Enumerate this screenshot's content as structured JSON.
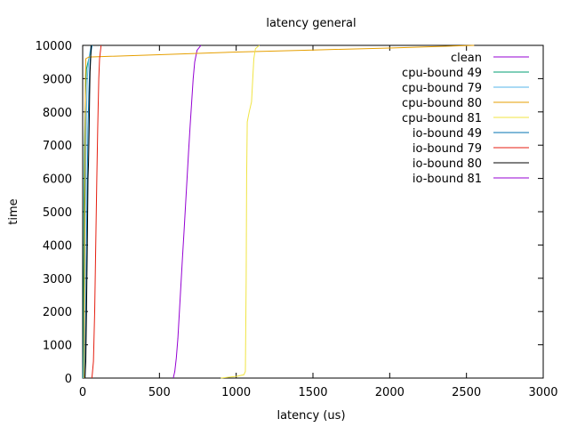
{
  "chart_data": {
    "type": "line",
    "title": "latency general",
    "xlabel": "latency (us)",
    "ylabel": "time",
    "xlim": [
      0,
      3000
    ],
    "ylim": [
      0,
      10000
    ],
    "xticks": [
      0,
      500,
      1000,
      1500,
      2000,
      2500,
      3000
    ],
    "yticks": [
      0,
      1000,
      2000,
      3000,
      4000,
      5000,
      6000,
      7000,
      8000,
      9000,
      10000
    ],
    "legend_position": "top-right",
    "grid": false,
    "series": [
      {
        "name": "clean",
        "color": "#9400d3",
        "points": [
          [
            590,
            0
          ],
          [
            600,
            200
          ],
          [
            610,
            600
          ],
          [
            620,
            1200
          ],
          [
            630,
            2000
          ],
          [
            640,
            2800
          ],
          [
            650,
            3600
          ],
          [
            660,
            4400
          ],
          [
            670,
            5200
          ],
          [
            680,
            6000
          ],
          [
            690,
            6800
          ],
          [
            700,
            7600
          ],
          [
            710,
            8300
          ],
          [
            720,
            9000
          ],
          [
            730,
            9500
          ],
          [
            745,
            9850
          ],
          [
            770,
            10000
          ]
        ]
      },
      {
        "name": "cpu-bound 49",
        "color": "#009e73",
        "points": [
          [
            2,
            0
          ],
          [
            4,
            1000
          ],
          [
            6,
            3000
          ],
          [
            8,
            5000
          ],
          [
            12,
            7000
          ],
          [
            18,
            8500
          ],
          [
            22,
            9000
          ],
          [
            25,
            9300
          ],
          [
            40,
            9600
          ],
          [
            60,
            10000
          ]
        ]
      },
      {
        "name": "cpu-bound 79",
        "color": "#56b4e9",
        "points": [
          [
            5,
            0
          ],
          [
            10,
            2000
          ],
          [
            15,
            4000
          ],
          [
            20,
            6000
          ],
          [
            25,
            8000
          ],
          [
            30,
            9000
          ],
          [
            40,
            9600
          ],
          [
            55,
            10000
          ]
        ]
      },
      {
        "name": "cpu-bound 80",
        "color": "#e69f00",
        "points": [
          [
            10,
            0
          ],
          [
            12,
            3000
          ],
          [
            15,
            6000
          ],
          [
            18,
            9000
          ],
          [
            20,
            9600
          ],
          [
            40,
            9650
          ],
          [
            500,
            9720
          ],
          [
            1000,
            9800
          ],
          [
            1500,
            9860
          ],
          [
            2000,
            9920
          ],
          [
            2550,
            10000
          ]
        ]
      },
      {
        "name": "cpu-bound 81",
        "color": "#f0e442",
        "points": [
          [
            900,
            0
          ],
          [
            1000,
            50
          ],
          [
            1050,
            100
          ],
          [
            1060,
            200
          ],
          [
            1065,
            3000
          ],
          [
            1068,
            6000
          ],
          [
            1072,
            7700
          ],
          [
            1085,
            8000
          ],
          [
            1100,
            8300
          ],
          [
            1115,
            9600
          ],
          [
            1125,
            9900
          ],
          [
            1150,
            10000
          ]
        ]
      },
      {
        "name": "io-bound 49",
        "color": "#0072b2",
        "points": [
          [
            15,
            0
          ],
          [
            20,
            2000
          ],
          [
            25,
            4000
          ],
          [
            30,
            6000
          ],
          [
            35,
            7500
          ],
          [
            40,
            8500
          ],
          [
            45,
            9200
          ],
          [
            50,
            9600
          ],
          [
            60,
            10000
          ]
        ]
      },
      {
        "name": "io-bound 79",
        "color": "#e51e10",
        "points": [
          [
            60,
            0
          ],
          [
            70,
            500
          ],
          [
            78,
            2000
          ],
          [
            85,
            4000
          ],
          [
            92,
            6000
          ],
          [
            98,
            7500
          ],
          [
            105,
            9000
          ],
          [
            110,
            9600
          ],
          [
            120,
            10000
          ]
        ]
      },
      {
        "name": "io-bound 80",
        "color": "#000000",
        "points": [
          [
            15,
            0
          ],
          [
            20,
            500
          ],
          [
            25,
            2000
          ],
          [
            30,
            4000
          ],
          [
            35,
            6000
          ],
          [
            38,
            6500
          ],
          [
            42,
            7500
          ],
          [
            45,
            8500
          ],
          [
            48,
            9200
          ],
          [
            52,
            9600
          ],
          [
            55,
            10000
          ]
        ]
      },
      {
        "name": "io-bound 81",
        "color": "#9400d3",
        "points": []
      }
    ]
  }
}
